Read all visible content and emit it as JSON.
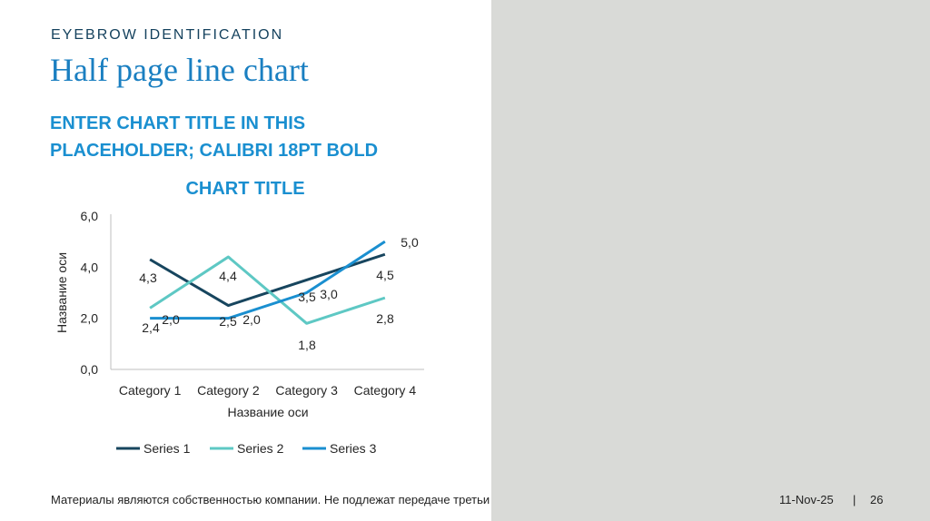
{
  "eyebrow": "EYEBROW IDENTIFICATION",
  "title": "Half page line chart",
  "subtitle": "ENTER CHART TITLE IN THIS PLACEHOLDER; CALIBRI 18PT BOLD",
  "footer": {
    "disclaimer": "Материалы являются собственностью компании. Не подлежат передаче третьим лицам.",
    "date": "11-Nov-25",
    "separator": "|",
    "page": "26"
  },
  "colors": {
    "accent": "#1a8fd0",
    "title": "#1a7fc1",
    "eyebrow": "#15425e",
    "panel": "#d9dad7"
  },
  "chart_data": {
    "type": "line",
    "title": "CHART TITLE",
    "xlabel": "Название оси",
    "ylabel": "Название оси",
    "categories": [
      "Category 1",
      "Category 2",
      "Category 3",
      "Category 4"
    ],
    "ylim": [
      0,
      6
    ],
    "yticks": [
      "0,0",
      "2,0",
      "4,0",
      "6,0"
    ],
    "grid": false,
    "legend_position": "bottom",
    "series": [
      {
        "name": "Series 1",
        "values": [
          4.3,
          2.5,
          3.5,
          4.5
        ],
        "labels": [
          "4,3",
          "2,5",
          "3,5",
          "4,5"
        ],
        "color": "#17455e"
      },
      {
        "name": "Series 2",
        "values": [
          2.4,
          4.4,
          1.8,
          2.8
        ],
        "labels": [
          "2,4",
          "4,4",
          "1,8",
          "2,8"
        ],
        "color": "#5ec8c4"
      },
      {
        "name": "Series 3",
        "values": [
          2.0,
          2.0,
          3.0,
          5.0
        ],
        "labels": [
          "2,0",
          "2,0",
          "3,0",
          "5,0"
        ],
        "color": "#1a8fd0"
      }
    ]
  }
}
